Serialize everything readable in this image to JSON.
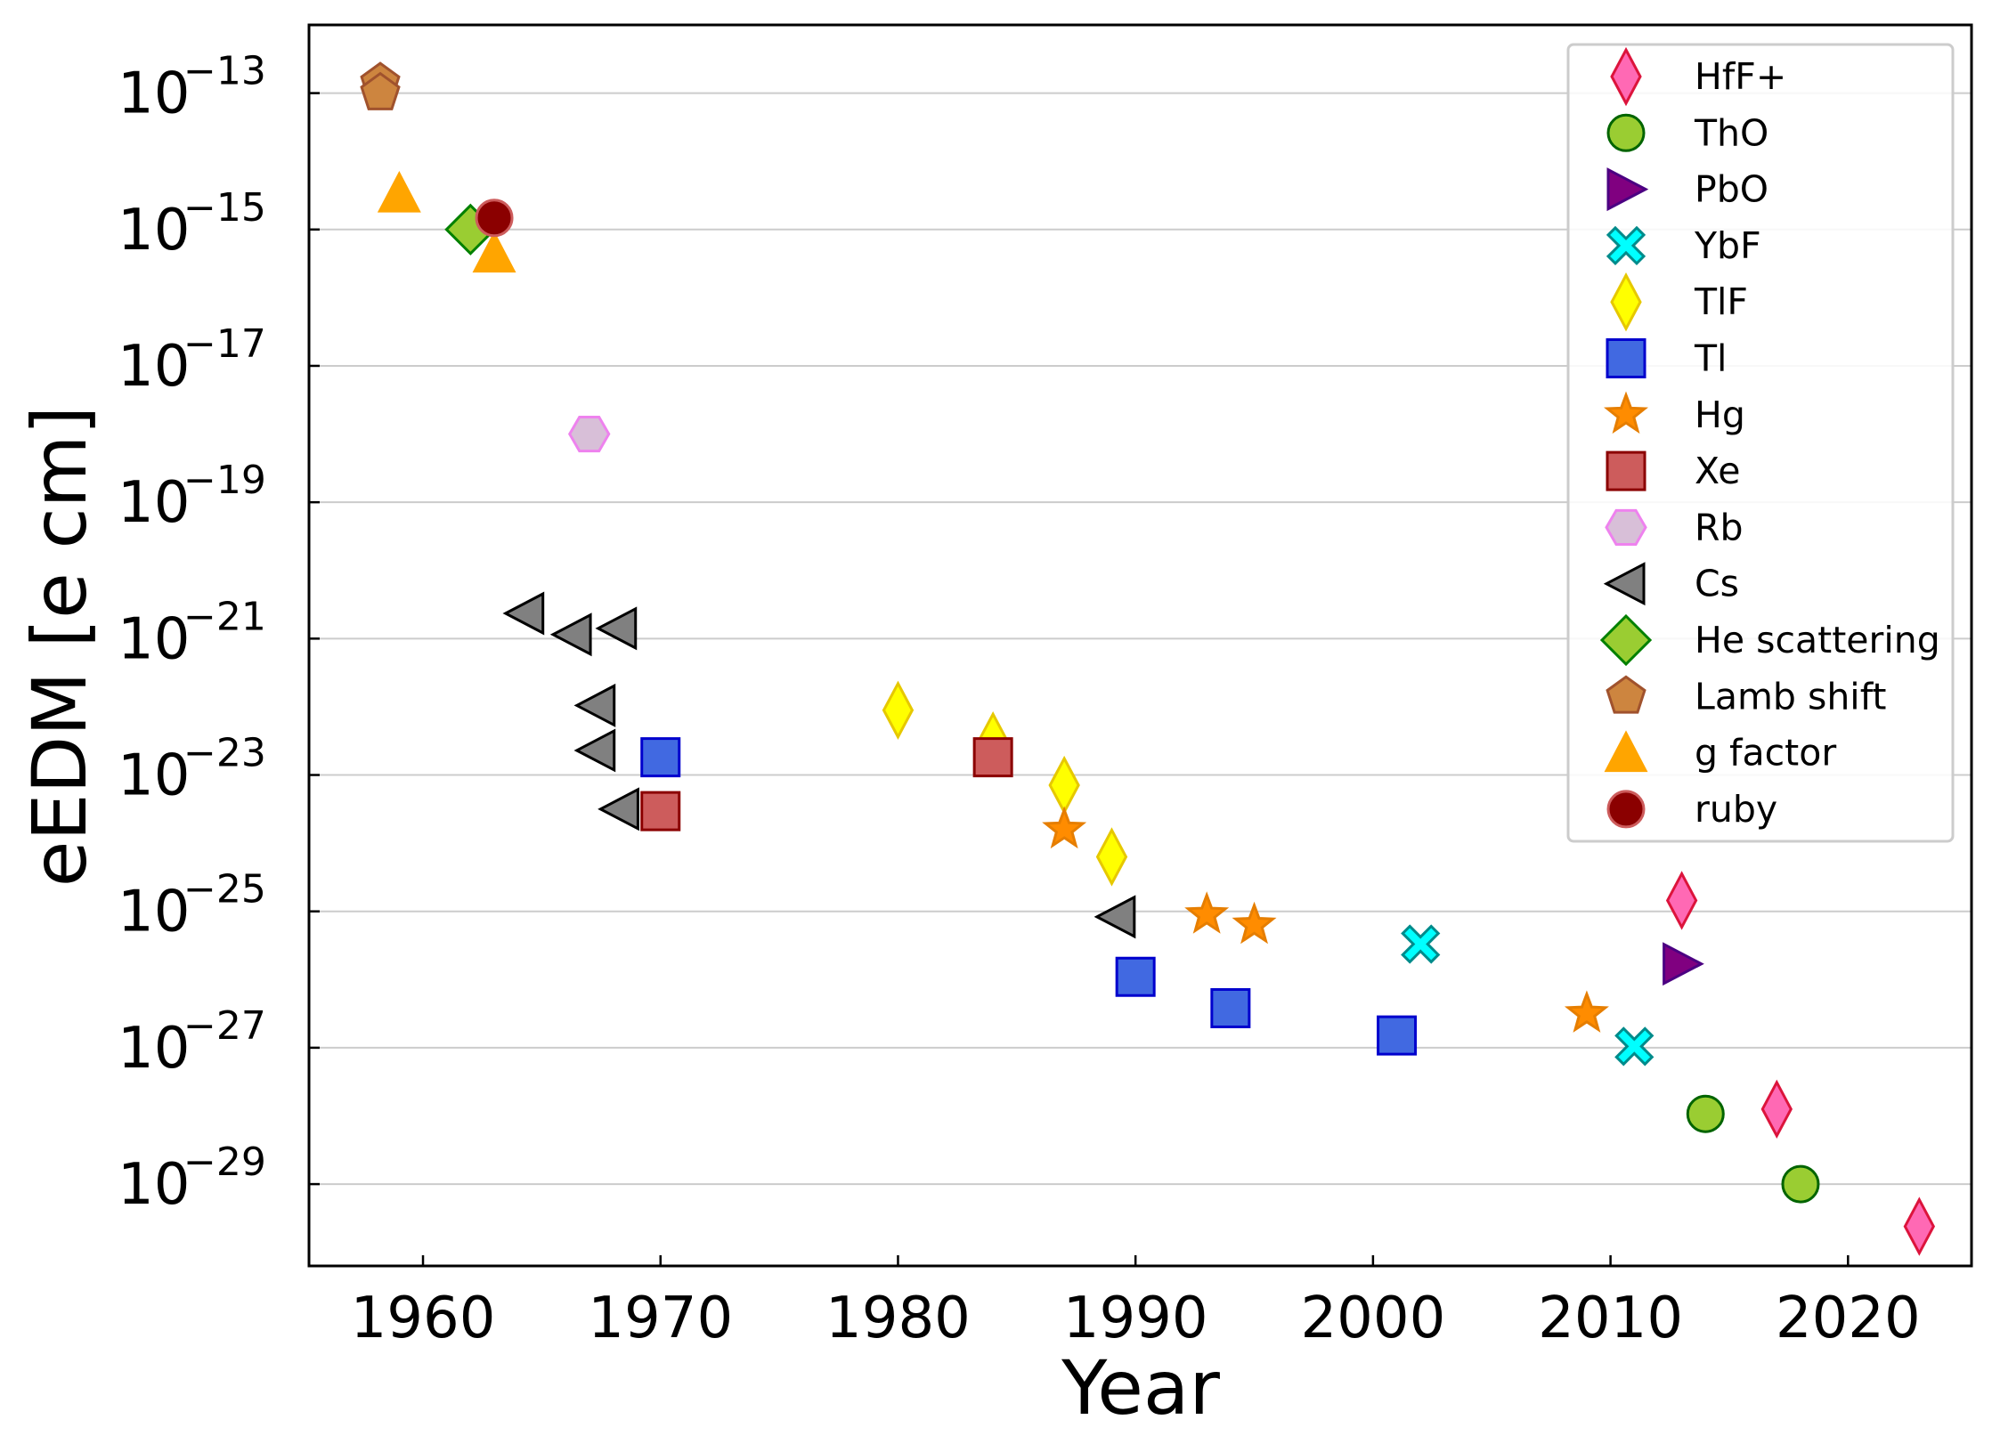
{
  "chart_data": {
    "type": "scatter",
    "title": "",
    "xlabel": "Year",
    "ylabel": "eEDM [e cm]",
    "xlim": [
      1955.2,
      2025.2
    ],
    "ylog": true,
    "ylim_log10": [
      -30.2,
      -12.0
    ],
    "xticks": [
      {
        "value": 1960,
        "label": "1960"
      },
      {
        "value": 1970,
        "label": "1970"
      },
      {
        "value": 1980,
        "label": "1980"
      },
      {
        "value": 1990,
        "label": "1990"
      },
      {
        "value": 2000,
        "label": "2000"
      },
      {
        "value": 2010,
        "label": "2010"
      },
      {
        "value": 2020,
        "label": "2020"
      }
    ],
    "yticks": [
      {
        "exp": -13,
        "base": "10",
        "power": "−13"
      },
      {
        "exp": -15,
        "base": "10",
        "power": "−15"
      },
      {
        "exp": -17,
        "base": "10",
        "power": "−17"
      },
      {
        "exp": -19,
        "base": "10",
        "power": "−19"
      },
      {
        "exp": -21,
        "base": "10",
        "power": "−21"
      },
      {
        "exp": -23,
        "base": "10",
        "power": "−23"
      },
      {
        "exp": -25,
        "base": "10",
        "power": "−25"
      },
      {
        "exp": -27,
        "base": "10",
        "power": "−27"
      },
      {
        "exp": -29,
        "base": "10",
        "power": "−29"
      }
    ],
    "grid": "horizontal",
    "legend_position": "top-right",
    "series": [
      {
        "name": "HfF+",
        "marker": "thin-diamond",
        "fill": "#ff69b4",
        "stroke": "#dc143c",
        "points": [
          {
            "x": 2013,
            "log10y": -24.84
          },
          {
            "x": 2017,
            "log10y": -27.9
          },
          {
            "x": 2023,
            "log10y": -29.62
          }
        ]
      },
      {
        "name": "ThO",
        "marker": "circle",
        "fill": "#9acd32",
        "stroke": "#006400",
        "points": [
          {
            "x": 2014,
            "log10y": -27.97
          },
          {
            "x": 2018,
            "log10y": -29.0
          }
        ]
      },
      {
        "name": "PbO",
        "marker": "triangle-right",
        "fill": "#800080",
        "stroke": "#4b0082",
        "points": [
          {
            "x": 2013,
            "log10y": -25.77
          }
        ]
      },
      {
        "name": "YbF",
        "marker": "x-filled",
        "fill": "#00ffff",
        "stroke": "#008b8b",
        "points": [
          {
            "x": 2002,
            "log10y": -25.48
          },
          {
            "x": 2011,
            "log10y": -26.98
          }
        ]
      },
      {
        "name": "TlF",
        "marker": "thin-diamond",
        "fill": "#ffff00",
        "stroke": "#e6c800",
        "points": [
          {
            "x": 1980,
            "log10y": -22.05
          },
          {
            "x": 1984,
            "log10y": -22.5
          },
          {
            "x": 1987,
            "log10y": -23.15
          },
          {
            "x": 1989,
            "log10y": -24.2
          }
        ]
      },
      {
        "name": "Tl",
        "marker": "square",
        "fill": "#4169e1",
        "stroke": "#0000cd",
        "points": [
          {
            "x": 1970,
            "log10y": -22.74
          },
          {
            "x": 1990,
            "log10y": -25.96
          },
          {
            "x": 1994,
            "log10y": -26.42
          },
          {
            "x": 2001,
            "log10y": -26.82
          }
        ]
      },
      {
        "name": "Hg",
        "marker": "star",
        "fill": "#ff8c00",
        "stroke": "#e67e00",
        "points": [
          {
            "x": 1987,
            "log10y": -23.8
          },
          {
            "x": 1993,
            "log10y": -25.05
          },
          {
            "x": 1995,
            "log10y": -25.2
          },
          {
            "x": 2009,
            "log10y": -26.5
          }
        ]
      },
      {
        "name": "Xe",
        "marker": "square",
        "fill": "#cd5c5c",
        "stroke": "#8b0000",
        "points": [
          {
            "x": 1970,
            "log10y": -23.53
          },
          {
            "x": 1984,
            "log10y": -22.74
          }
        ]
      },
      {
        "name": "Rb",
        "marker": "hexagon",
        "fill": "#d8bfd8",
        "stroke": "#ee82ee",
        "points": [
          {
            "x": 1967,
            "log10y": -18.0
          }
        ]
      },
      {
        "name": "Cs",
        "marker": "triangle-left",
        "fill": "#808080",
        "stroke": "#000000",
        "points": [
          {
            "x": 1964.3,
            "log10y": -20.63
          },
          {
            "x": 1966.3,
            "log10y": -20.94
          },
          {
            "x": 1968.2,
            "log10y": -20.85
          },
          {
            "x": 1967.3,
            "log10y": -21.98
          },
          {
            "x": 1967.3,
            "log10y": -22.64
          },
          {
            "x": 1968.3,
            "log10y": -23.5
          },
          {
            "x": 1989.2,
            "log10y": -25.08
          }
        ]
      },
      {
        "name": "He scattering",
        "marker": "diamond",
        "fill": "#9acd32",
        "stroke": "#008000",
        "points": [
          {
            "x": 1962,
            "log10y": -15.0
          }
        ]
      },
      {
        "name": "Lamb shift",
        "marker": "pentagon",
        "fill": "#cd853f",
        "stroke": "#a0522d",
        "points": [
          {
            "x": 1958.2,
            "log10y": -12.85
          },
          {
            "x": 1958.2,
            "log10y": -13.0
          }
        ]
      },
      {
        "name": "g factor",
        "marker": "triangle-up",
        "fill": "#ffa500",
        "stroke": "#ffa500",
        "points": [
          {
            "x": 1959,
            "log10y": -14.47
          },
          {
            "x": 1963,
            "log10y": -15.35
          }
        ]
      },
      {
        "name": "ruby",
        "marker": "circle",
        "fill": "#8b0000",
        "stroke": "#cd5c5c",
        "points": [
          {
            "x": 1963,
            "log10y": -14.83
          }
        ]
      }
    ]
  }
}
